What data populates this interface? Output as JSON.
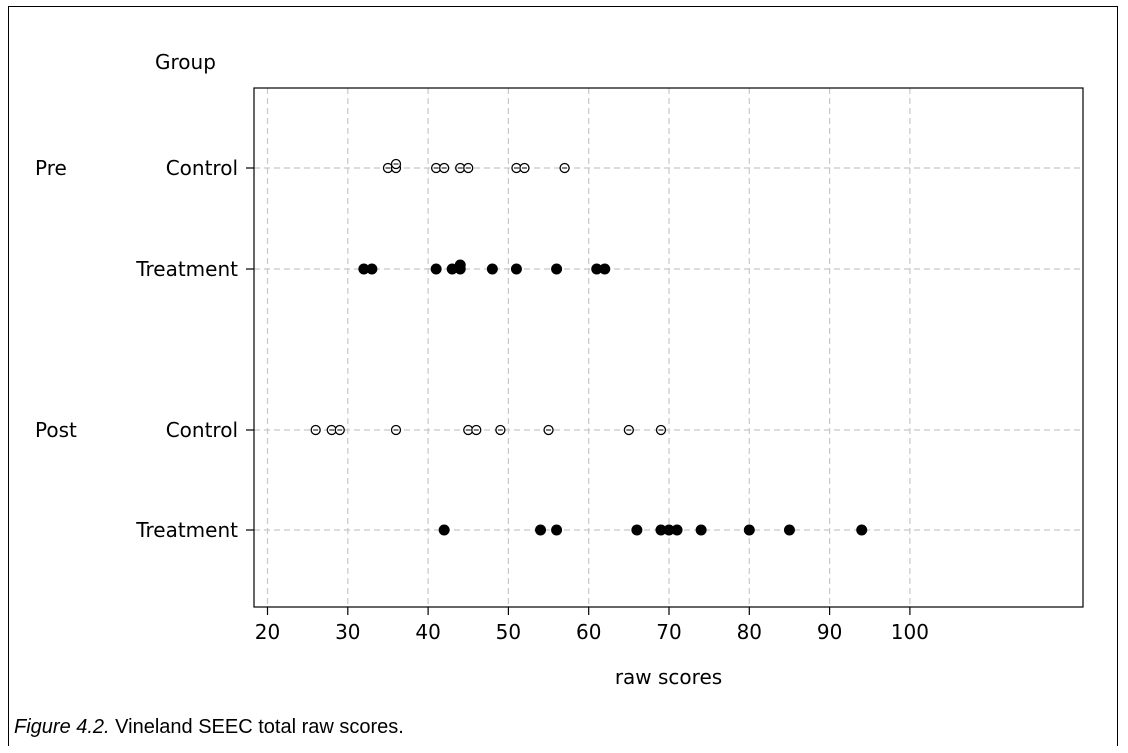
{
  "chart_data": {
    "type": "scatter",
    "group_header": "Group",
    "xlabel": "raw scores",
    "xlim": [
      19,
      101
    ],
    "xticks": [
      20,
      30,
      40,
      50,
      60,
      70,
      80,
      90,
      100
    ],
    "grid": true,
    "rows": [
      {
        "period": "Pre",
        "group": "Control",
        "filled": false,
        "values": [
          35,
          36,
          36,
          41,
          42,
          44,
          45,
          51,
          52,
          57
        ]
      },
      {
        "period": "",
        "group": "Treatment",
        "filled": true,
        "values": [
          32,
          33,
          41,
          43,
          44,
          44,
          48,
          51,
          56,
          61,
          62
        ]
      },
      {
        "period": "Post",
        "group": "Control",
        "filled": false,
        "values": [
          26,
          28,
          29,
          36,
          45,
          46,
          49,
          55,
          65,
          69
        ]
      },
      {
        "period": "",
        "group": "Treatment",
        "filled": true,
        "values": [
          42,
          54,
          56,
          66,
          69,
          70,
          71,
          74,
          80,
          85,
          94
        ]
      }
    ]
  },
  "caption": {
    "figure_label": "Figure 4.2.",
    "text": " Vineland SEEC total raw scores."
  }
}
